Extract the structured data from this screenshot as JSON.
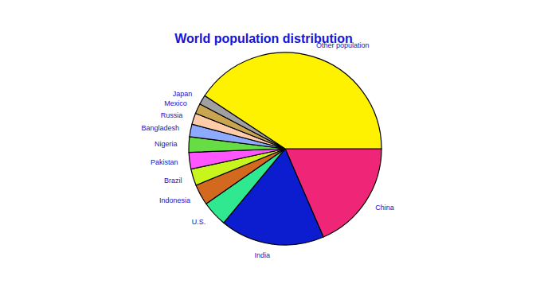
{
  "chart_data": {
    "type": "pie",
    "title": "World population distribution",
    "categories": [
      "China",
      "India",
      "U.S.",
      "Indonesia",
      "Brazil",
      "Pakistan",
      "Nigeria",
      "Bangladesh",
      "Russia",
      "Mexico",
      "Japan",
      "Other population"
    ],
    "values": [
      18.5,
      17.5,
      4.3,
      3.5,
      2.8,
      2.8,
      2.6,
      2.1,
      1.9,
      1.7,
      1.6,
      40.7
    ],
    "colors": [
      "#ef2577",
      "#0c1dd0",
      "#2fe88f",
      "#d2691e",
      "#c9f51f",
      "#ff55ff",
      "#66dd44",
      "#8eaaff",
      "#ffccaa",
      "#c9a552",
      "#a0a0a0",
      "#fff200"
    ]
  }
}
